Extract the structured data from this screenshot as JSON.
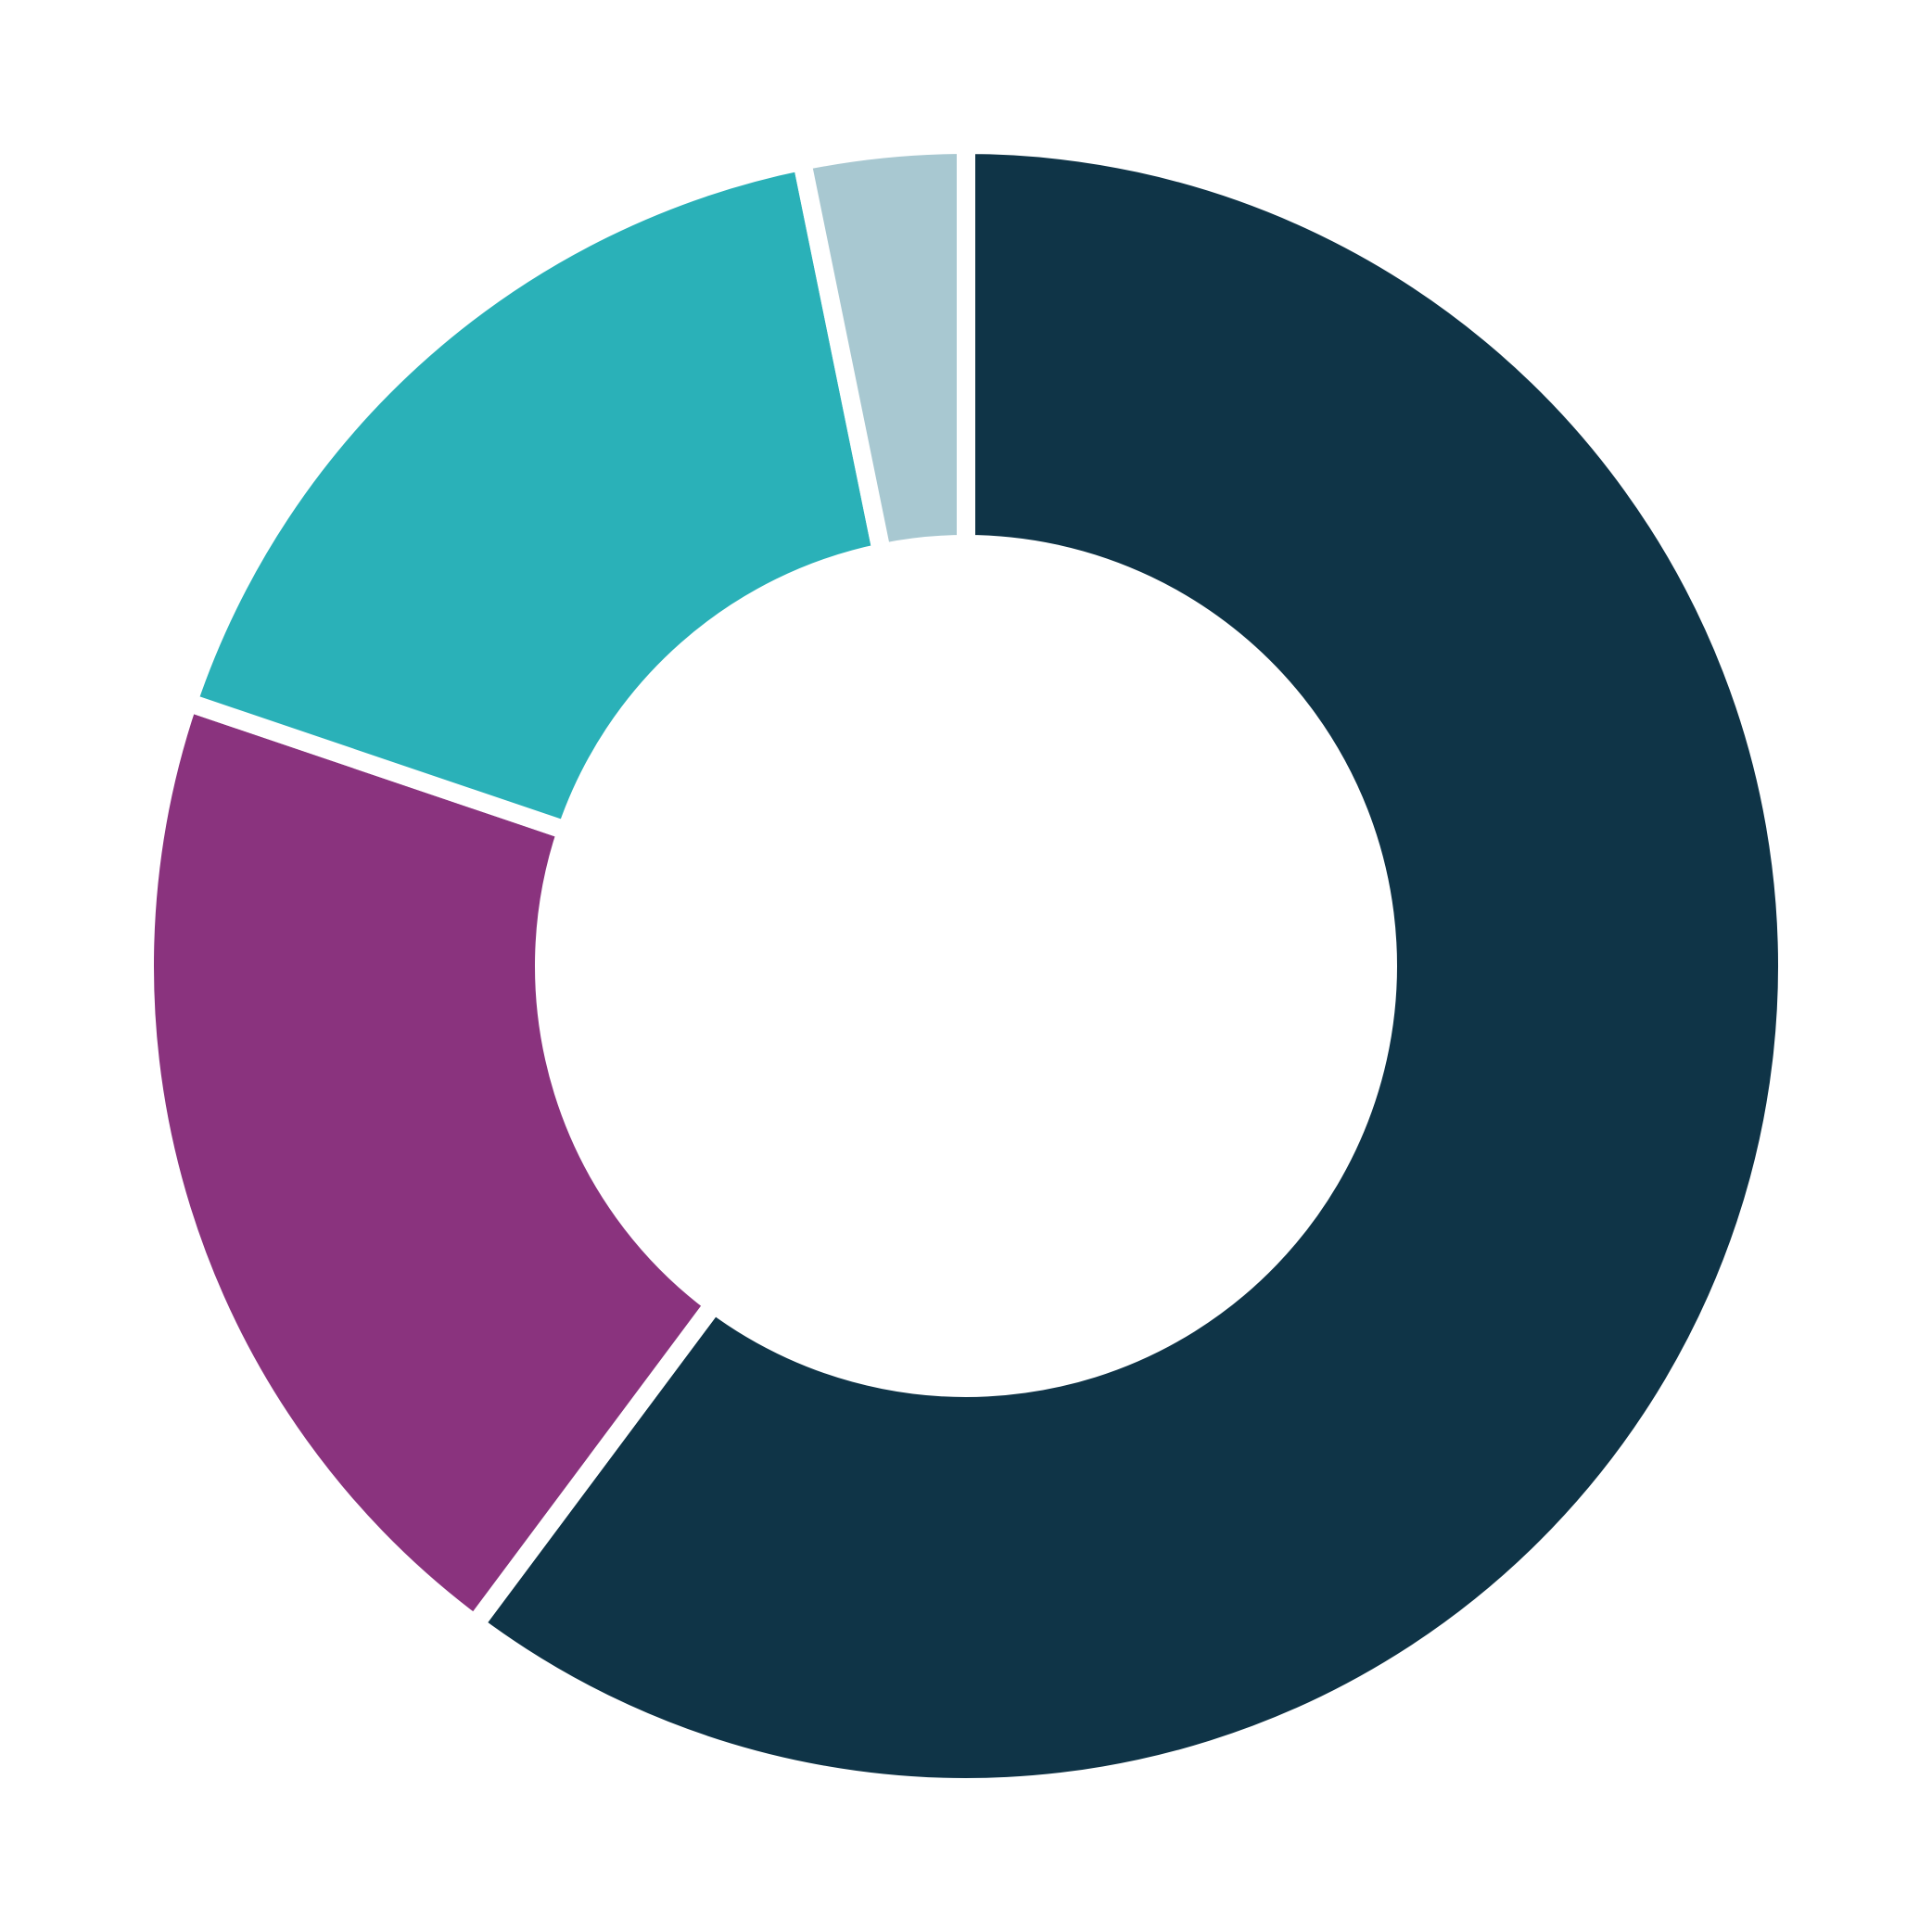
{
  "chart_data": {
    "type": "pie",
    "variant": "donut",
    "title": "",
    "legend": "none",
    "slices": [
      {
        "value": 60.2,
        "color": "#0f3447"
      },
      {
        "value": 20.0,
        "color": "#8a337e"
      },
      {
        "value": 16.6,
        "color": "#2ab1b8"
      },
      {
        "value": 3.2,
        "color": "#a8c8d1"
      }
    ]
  }
}
